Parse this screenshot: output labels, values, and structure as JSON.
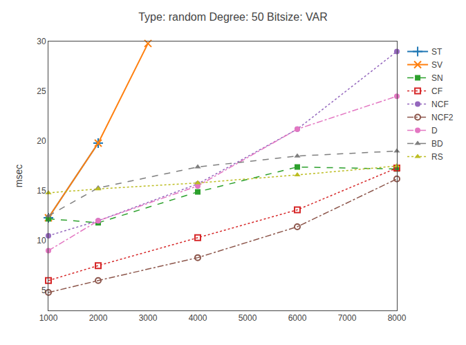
{
  "chart_data": {
    "type": "line",
    "title": "Type: random Degree: 50 Bitsize: VAR",
    "ylabel": "msec",
    "xlim": [
      1000,
      8000
    ],
    "ylim": [
      3,
      30
    ],
    "xticks": [
      1000,
      2000,
      3000,
      4000,
      5000,
      6000,
      7000,
      8000
    ],
    "yticks": [
      5,
      10,
      15,
      20,
      25,
      30
    ],
    "grid": false,
    "legend": "upper right",
    "series": [
      {
        "name": "ST",
        "x": [
          1000,
          2000
        ],
        "values": [
          12.3,
          19.8
        ],
        "marker": "plus",
        "line_style": "solid"
      },
      {
        "name": "SV",
        "x": [
          1000,
          2000,
          3000
        ],
        "values": [
          12.3,
          19.8,
          29.8
        ],
        "marker": "x",
        "line_style": "solid"
      },
      {
        "name": "SN",
        "x": [
          1000,
          2000,
          4000,
          6000,
          8000
        ],
        "values": [
          12.2,
          11.8,
          14.9,
          17.4,
          17.2
        ],
        "marker": "square",
        "line_style": "dashed"
      },
      {
        "name": "CF",
        "x": [
          1000,
          2000,
          4000,
          6000,
          8000
        ],
        "values": [
          6.0,
          7.5,
          10.3,
          13.1,
          17.3
        ],
        "marker": "square-open",
        "line_style": "dotted"
      },
      {
        "name": "NCF",
        "x": [
          1000,
          2000,
          4000,
          6000,
          8000
        ],
        "values": [
          10.5,
          12.0,
          15.7,
          21.2,
          29.0
        ],
        "marker": "circle",
        "line_style": "dotted"
      },
      {
        "name": "NCF2",
        "x": [
          1000,
          2000,
          4000,
          6000,
          8000
        ],
        "values": [
          4.8,
          6.0,
          8.3,
          11.4,
          16.2
        ],
        "marker": "circle-open",
        "line_style": "dashdot"
      },
      {
        "name": "D",
        "x": [
          1000,
          2000,
          4000,
          6000,
          8000
        ],
        "values": [
          9.0,
          12.0,
          15.5,
          21.2,
          24.5
        ],
        "marker": "circle",
        "line_style": "dashdot"
      },
      {
        "name": "BD",
        "x": [
          1000,
          2000,
          4000,
          6000,
          8000
        ],
        "values": [
          12.5,
          15.3,
          17.4,
          18.5,
          19.0
        ],
        "marker": "triangle-up",
        "line_style": "dashed"
      },
      {
        "name": "RS",
        "x": [
          1000,
          2000,
          4000,
          6000,
          8000
        ],
        "values": [
          14.8,
          15.2,
          15.8,
          16.6,
          17.5
        ],
        "marker": "triangle-up",
        "line_style": "dotted"
      }
    ]
  }
}
